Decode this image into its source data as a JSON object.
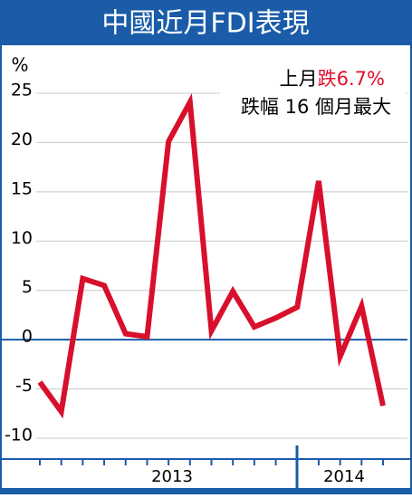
{
  "chart_data": {
    "type": "line",
    "title": "中國近月FDI表現",
    "y_label": "%",
    "annotation": {
      "prefix": "上月",
      "highlight": "跌6.7%",
      "highlight_color": "#e0102e",
      "line2": "跌幅 16 個月最大"
    },
    "categories": [
      null,
      null,
      null,
      null,
      null,
      null,
      null,
      null,
      null,
      null,
      null,
      null,
      null,
      null,
      null,
      null,
      null
    ],
    "series": [
      {
        "color": "#d8102c",
        "values": [
          -4.3,
          -7.3,
          6.2,
          5.5,
          0.6,
          0.3,
          20.1,
          24.1,
          0.9,
          4.9,
          1.3,
          2.2,
          3.3,
          16.1,
          -1.7,
          3.4,
          -6.7
        ]
      }
    ],
    "ylim": [
      -10,
      25
    ],
    "yticks": [
      -10,
      -5,
      0,
      5,
      10,
      15,
      20,
      25
    ],
    "grid": true,
    "year_labels": [
      "2013",
      "2014"
    ]
  }
}
